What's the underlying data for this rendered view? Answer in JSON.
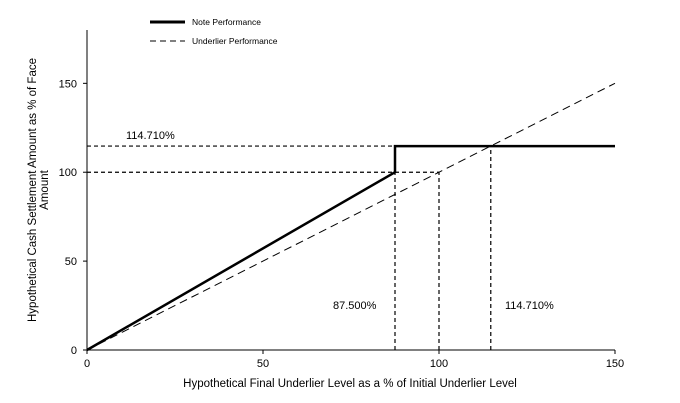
{
  "chart_data": {
    "type": "line",
    "title": "",
    "xlabel": "Hypothetical Final Underlier Level as a % of Initial Underlier Level",
    "ylabel_line1": "Hypothetical Cash Settlement Amount as % of Face",
    "ylabel_line2": "Amount",
    "xlim": [
      0,
      150
    ],
    "ylim": [
      0,
      180
    ],
    "xticks": [
      0,
      50,
      100,
      150
    ],
    "yticks": [
      0,
      50,
      100,
      150
    ],
    "grid": false,
    "legend_position": "top-left",
    "series": [
      {
        "name": "Note Performance",
        "style": "solid",
        "color": "#000000",
        "points": [
          [
            0,
            0
          ],
          [
            87.5,
            100
          ],
          [
            87.5,
            114.71
          ],
          [
            150,
            114.71
          ]
        ]
      },
      {
        "name": "Underlier Performance",
        "style": "dashed",
        "color": "#000000",
        "points": [
          [
            0,
            0
          ],
          [
            150,
            150
          ]
        ]
      }
    ],
    "reference_lines": [
      {
        "points": [
          [
            0,
            114.71
          ],
          [
            87.5,
            114.71
          ]
        ]
      },
      {
        "points": [
          [
            0,
            100
          ],
          [
            100,
            100
          ]
        ]
      },
      {
        "points": [
          [
            87.5,
            0
          ],
          [
            87.5,
            100
          ]
        ]
      },
      {
        "points": [
          [
            100,
            0
          ],
          [
            100,
            100
          ]
        ]
      },
      {
        "points": [
          [
            114.71,
            0
          ],
          [
            114.71,
            114.71
          ]
        ]
      }
    ],
    "annotations": {
      "cap_label": "114.710%",
      "threshold_label": "87.500%",
      "cap_level_label": "114.710%"
    }
  }
}
